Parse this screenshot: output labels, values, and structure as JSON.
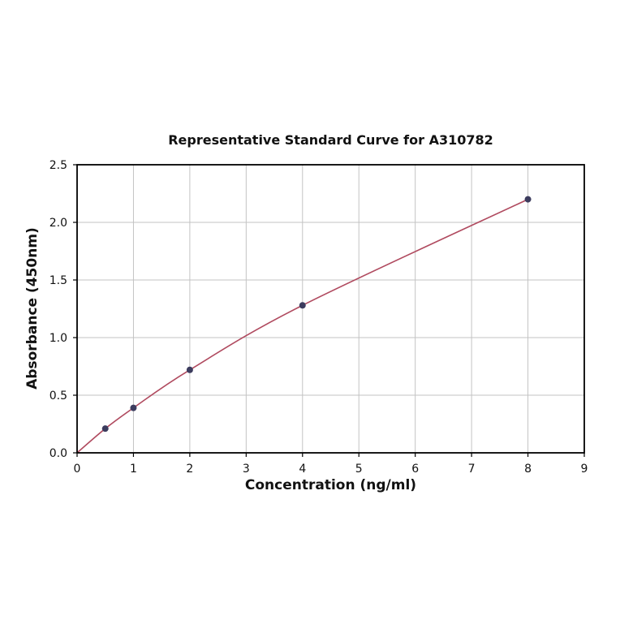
{
  "page": {
    "background": "#ffffff"
  },
  "chart_data": {
    "type": "line",
    "title": "Representative Standard Curve for A310782",
    "xlabel": "Concentration (ng/ml)",
    "ylabel": "Absorbance (450nm)",
    "curve_start": [
      0,
      0
    ],
    "x": [
      0.5,
      1,
      2,
      4,
      8
    ],
    "y": [
      0.21,
      0.39,
      0.72,
      1.28,
      2.2
    ],
    "xlim": [
      0,
      9
    ],
    "ylim": [
      0,
      2.5
    ],
    "xticks": [
      0,
      1,
      2,
      3,
      4,
      5,
      6,
      7,
      8,
      9
    ],
    "xtick_labels": [
      "0",
      "1",
      "2",
      "3",
      "4",
      "5",
      "6",
      "7",
      "8",
      "9"
    ],
    "yticks": [
      0.0,
      0.5,
      1.0,
      1.5,
      2.0,
      2.5
    ],
    "ytick_labels": [
      "0.0",
      "0.5",
      "1.0",
      "1.5",
      "2.0",
      "2.5"
    ],
    "grid": true,
    "legend": "none",
    "colors": {
      "curve": "#b04a5f",
      "marker": "#3c3c5e",
      "grid": "#c3c3c3",
      "border": "#000000",
      "text": "#111111"
    }
  }
}
